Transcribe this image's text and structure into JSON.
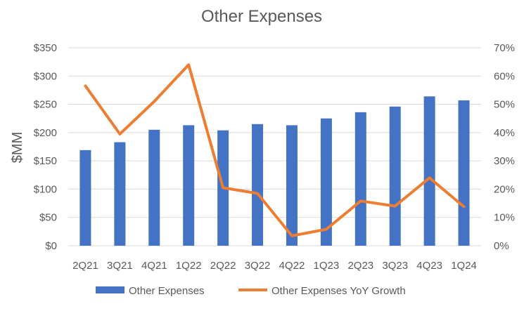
{
  "chart_data": {
    "type": "bar",
    "title": "Other Expenses",
    "ylabel": "$MM",
    "categories": [
      "2Q21",
      "3Q21",
      "4Q21",
      "1Q22",
      "2Q22",
      "3Q22",
      "4Q22",
      "1Q23",
      "2Q23",
      "3Q23",
      "4Q23",
      "1Q24"
    ],
    "series": [
      {
        "name": "Other Expenses",
        "type": "bar",
        "axis": "left",
        "color": "#4472C4",
        "values": [
          169,
          183,
          205,
          213,
          204,
          215,
          213,
          225,
          236,
          246,
          264,
          257
        ]
      },
      {
        "name": "Other Expenses YoY Growth",
        "type": "line",
        "axis": "right",
        "color": "#ED7D31",
        "values": [
          0.565,
          0.395,
          0.51,
          0.64,
          0.205,
          0.185,
          0.035,
          0.058,
          0.158,
          0.14,
          0.24,
          0.138
        ]
      }
    ],
    "y_left": {
      "min": 0,
      "max": 350,
      "step": 50,
      "tick_labels": [
        "$0",
        "$50",
        "$100",
        "$150",
        "$200",
        "$250",
        "$300",
        "$350"
      ]
    },
    "y_right": {
      "min": 0,
      "max": 0.7,
      "step": 0.1,
      "tick_labels": [
        "0%",
        "10%",
        "20%",
        "30%",
        "40%",
        "50%",
        "60%",
        "70%"
      ]
    },
    "grid": true,
    "legend_position": "bottom"
  }
}
